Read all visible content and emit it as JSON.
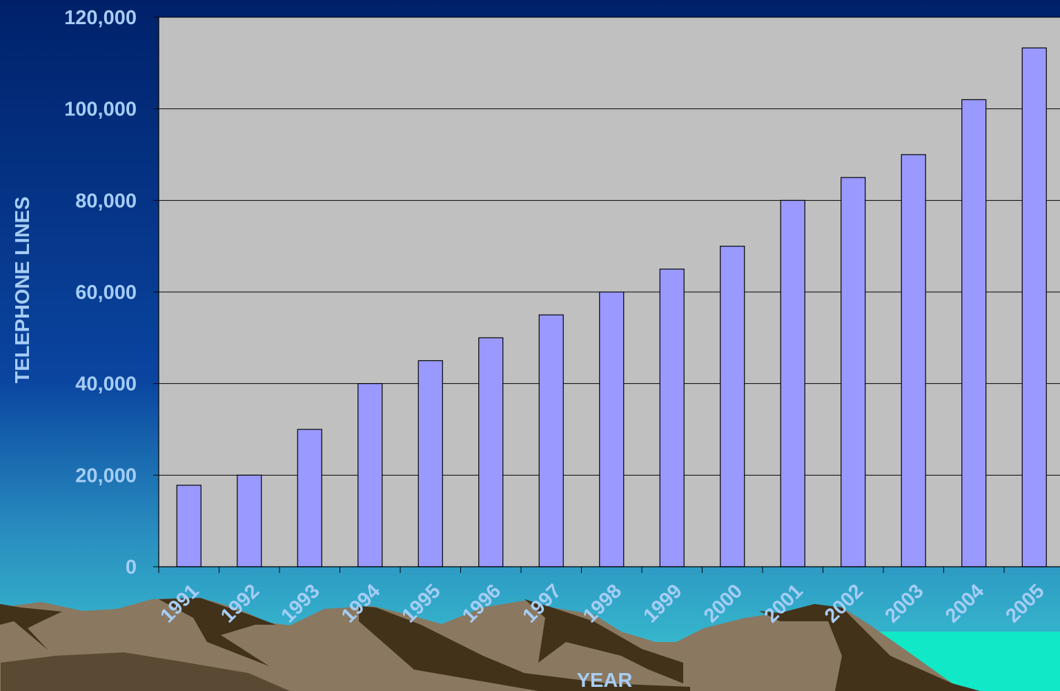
{
  "chart_data": {
    "type": "bar",
    "title": "",
    "xlabel": "YEAR",
    "ylabel": "TELEPHONE LINES",
    "categories": [
      "1991",
      "1992",
      "1993",
      "1994",
      "1995",
      "1996",
      "1997",
      "1998",
      "1999",
      "2000",
      "2001",
      "2002",
      "2003",
      "2004",
      "2005"
    ],
    "values": [
      17800,
      20000,
      30000,
      40000,
      45000,
      50000,
      55000,
      60000,
      65000,
      70000,
      80000,
      85000,
      90000,
      102000,
      113300
    ],
    "ylim": [
      0,
      120000
    ],
    "yticks": [
      "0",
      "20,000",
      "40,000",
      "60,000",
      "80,000",
      "100,000",
      "120,000"
    ],
    "ytick_values": [
      0,
      20000,
      40000,
      60000,
      80000,
      100000,
      120000
    ],
    "grid": true,
    "legend": "none",
    "colors": {
      "bar_fill": "#9999ff",
      "plot_bg": "#c0c0c0",
      "label_text": "#a6cdf5",
      "bg_top": "#00216a",
      "bg_bottom": "#34c5d0"
    }
  }
}
